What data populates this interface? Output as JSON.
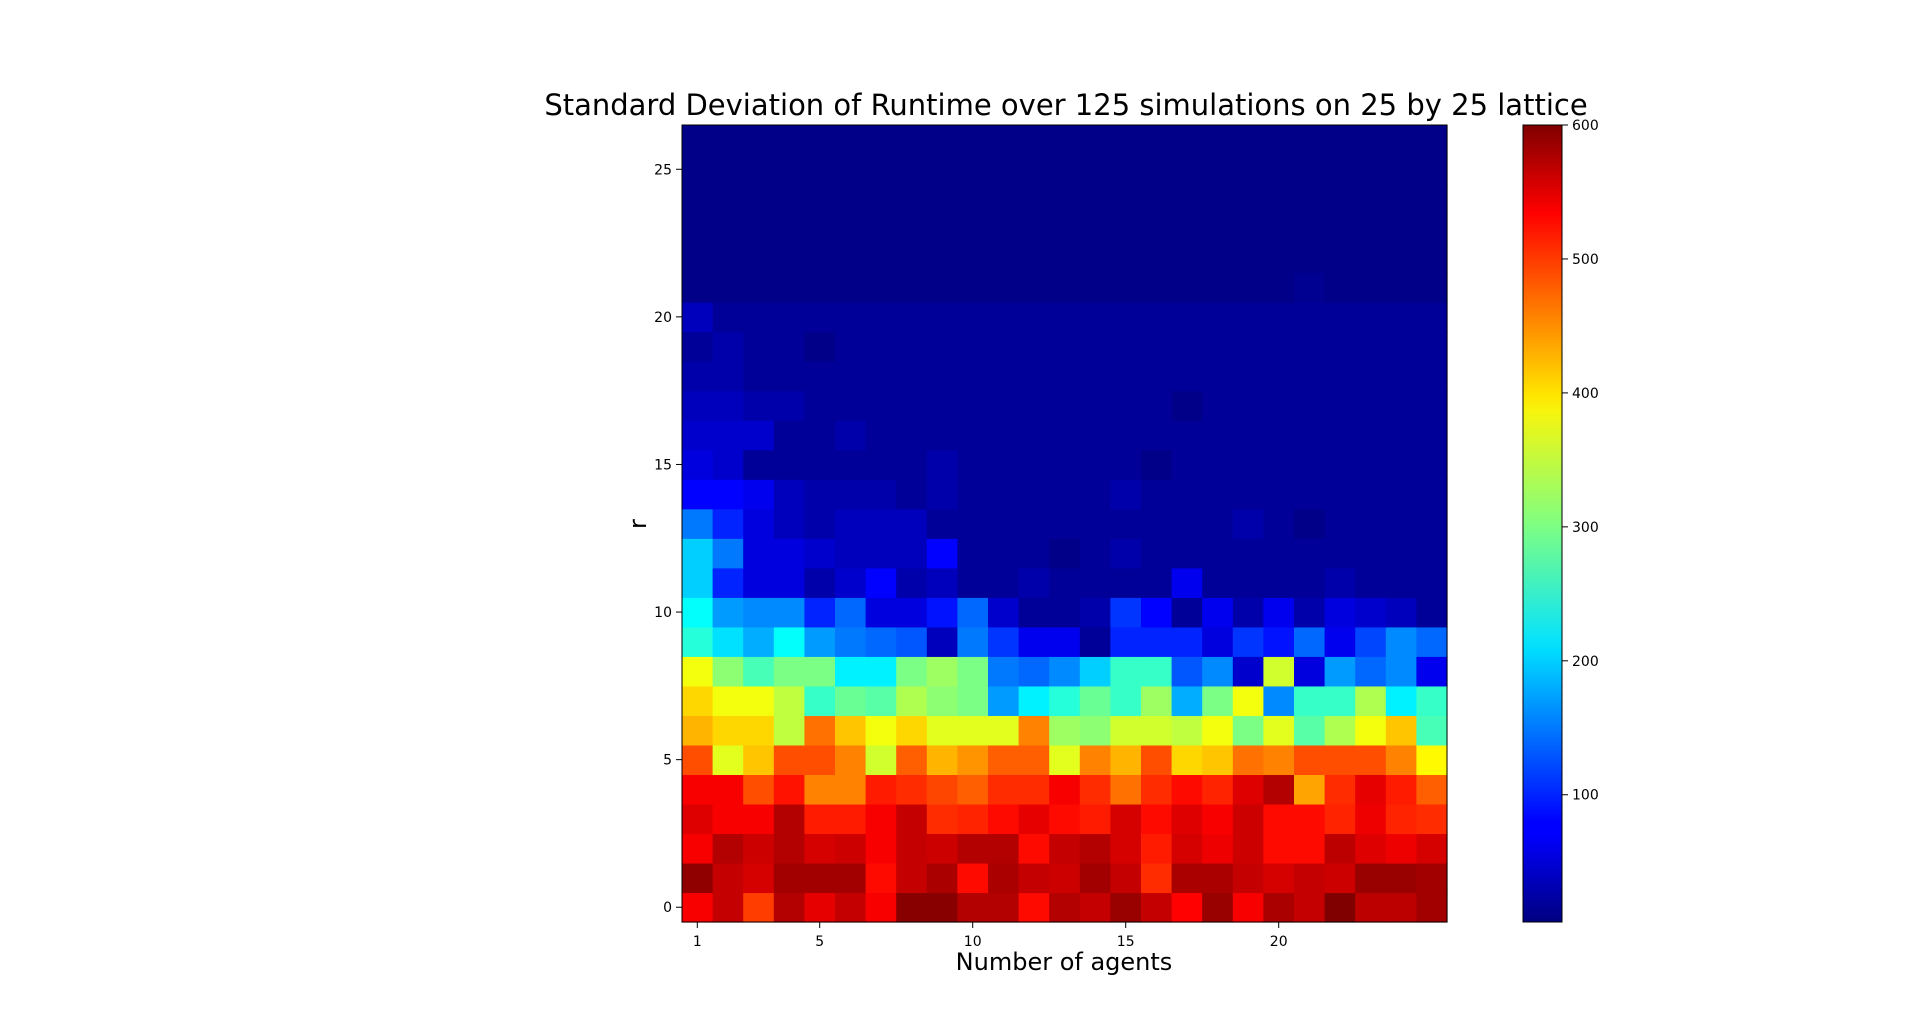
{
  "chart_data": {
    "type": "heatmap",
    "title": "Standard Deviation of Runtime over 125 simulations on 25 by 25 lattice",
    "xlabel": "Number of agents",
    "ylabel": "r",
    "x_ticks": [
      1,
      5,
      10,
      15,
      20
    ],
    "y_ticks": [
      0,
      5,
      10,
      15,
      20,
      25
    ],
    "colorbar_ticks": [
      100,
      200,
      300,
      400,
      500,
      600
    ],
    "colorbar_range": [
      5,
      600
    ],
    "colormap": "jet",
    "x_values": [
      1,
      2,
      3,
      4,
      5,
      6,
      7,
      8,
      9,
      10,
      11,
      12,
      13,
      14,
      15,
      16,
      17,
      18,
      19,
      20,
      21,
      22,
      23,
      24,
      25
    ],
    "y_values": [
      0,
      1,
      2,
      3,
      4,
      5,
      6,
      7,
      8,
      9,
      10,
      11,
      12,
      13,
      14,
      15,
      16,
      17,
      18,
      19,
      20,
      21,
      22,
      23,
      24,
      25,
      26
    ],
    "rows_from_r0": [
      [
        530,
        560,
        490,
        570,
        540,
        560,
        530,
        595,
        595,
        570,
        570,
        520,
        570,
        560,
        585,
        560,
        525,
        585,
        530,
        575,
        560,
        600,
        565,
        565,
        580
      ],
      [
        590,
        560,
        550,
        580,
        580,
        580,
        520,
        560,
        575,
        520,
        575,
        560,
        555,
        580,
        560,
        500,
        575,
        575,
        560,
        550,
        560,
        555,
        585,
        585,
        580
      ],
      [
        530,
        570,
        555,
        570,
        550,
        555,
        530,
        560,
        555,
        570,
        570,
        520,
        560,
        570,
        550,
        510,
        550,
        535,
        555,
        520,
        520,
        565,
        545,
        535,
        550
      ],
      [
        545,
        530,
        530,
        570,
        510,
        510,
        530,
        560,
        500,
        505,
        520,
        540,
        520,
        510,
        550,
        520,
        545,
        530,
        555,
        520,
        520,
        505,
        535,
        505,
        500
      ],
      [
        530,
        530,
        480,
        515,
        450,
        450,
        510,
        500,
        485,
        470,
        500,
        500,
        530,
        500,
        460,
        500,
        520,
        505,
        545,
        570,
        430,
        500,
        540,
        510,
        470
      ],
      [
        480,
        360,
        410,
        480,
        480,
        450,
        350,
        470,
        420,
        440,
        470,
        470,
        360,
        450,
        420,
        480,
        400,
        410,
        460,
        450,
        480,
        480,
        480,
        450,
        380
      ],
      [
        420,
        400,
        400,
        340,
        460,
        410,
        370,
        400,
        360,
        360,
        360,
        450,
        320,
        310,
        350,
        350,
        340,
        370,
        300,
        360,
        280,
        330,
        370,
        410,
        270
      ],
      [
        400,
        370,
        370,
        340,
        260,
        290,
        280,
        330,
        310,
        300,
        170,
        220,
        250,
        290,
        260,
        320,
        180,
        300,
        370,
        160,
        260,
        260,
        330,
        220,
        260
      ],
      [
        370,
        310,
        270,
        300,
        300,
        220,
        220,
        300,
        320,
        300,
        150,
        140,
        160,
        200,
        260,
        260,
        130,
        160,
        50,
        350,
        60,
        170,
        140,
        160,
        70
      ],
      [
        250,
        210,
        180,
        230,
        170,
        150,
        140,
        130,
        40,
        150,
        110,
        70,
        70,
        20,
        100,
        100,
        100,
        60,
        110,
        90,
        140,
        70,
        120,
        160,
        140
      ],
      [
        230,
        170,
        160,
        160,
        100,
        140,
        60,
        60,
        90,
        140,
        50,
        20,
        20,
        30,
        110,
        80,
        20,
        70,
        30,
        70,
        30,
        60,
        50,
        40,
        20
      ],
      [
        200,
        100,
        60,
        60,
        30,
        50,
        80,
        30,
        40,
        20,
        20,
        30,
        20,
        20,
        20,
        20,
        70,
        20,
        20,
        20,
        20,
        30,
        20,
        20,
        20
      ],
      [
        200,
        150,
        60,
        60,
        50,
        40,
        40,
        40,
        80,
        20,
        20,
        20,
        10,
        20,
        30,
        20,
        20,
        20,
        20,
        20,
        20,
        20,
        20,
        20,
        20
      ],
      [
        150,
        100,
        60,
        40,
        30,
        40,
        40,
        40,
        20,
        20,
        20,
        20,
        20,
        20,
        20,
        20,
        20,
        20,
        30,
        20,
        10,
        20,
        20,
        20,
        20
      ],
      [
        80,
        80,
        70,
        40,
        30,
        30,
        30,
        20,
        30,
        20,
        20,
        20,
        20,
        20,
        30,
        20,
        20,
        20,
        20,
        20,
        20,
        20,
        20,
        20,
        20
      ],
      [
        60,
        50,
        20,
        20,
        20,
        20,
        20,
        20,
        30,
        20,
        20,
        20,
        20,
        20,
        20,
        10,
        20,
        20,
        20,
        20,
        20,
        20,
        20,
        20,
        20
      ],
      [
        50,
        50,
        50,
        20,
        20,
        30,
        20,
        20,
        20,
        20,
        20,
        20,
        20,
        20,
        20,
        20,
        20,
        20,
        20,
        20,
        20,
        20,
        20,
        20,
        20
      ],
      [
        40,
        40,
        30,
        30,
        20,
        20,
        20,
        20,
        20,
        20,
        20,
        20,
        20,
        20,
        20,
        20,
        10,
        20,
        20,
        20,
        20,
        20,
        20,
        20,
        20
      ],
      [
        30,
        30,
        20,
        20,
        20,
        20,
        20,
        20,
        20,
        20,
        20,
        20,
        20,
        20,
        20,
        20,
        20,
        20,
        20,
        20,
        20,
        20,
        20,
        20,
        20
      ],
      [
        20,
        30,
        20,
        20,
        10,
        20,
        20,
        20,
        20,
        20,
        20,
        20,
        20,
        20,
        20,
        20,
        20,
        20,
        20,
        20,
        20,
        20,
        20,
        20,
        20
      ],
      [
        40,
        20,
        20,
        20,
        20,
        20,
        20,
        20,
        20,
        20,
        20,
        20,
        20,
        20,
        20,
        20,
        20,
        20,
        20,
        20,
        20,
        20,
        20,
        20,
        20
      ],
      [
        10,
        10,
        10,
        10,
        10,
        10,
        10,
        10,
        10,
        10,
        10,
        10,
        10,
        10,
        10,
        10,
        10,
        10,
        10,
        10,
        15,
        10,
        10,
        10,
        10
      ],
      [
        10,
        10,
        10,
        10,
        10,
        10,
        10,
        10,
        10,
        10,
        10,
        10,
        10,
        10,
        10,
        10,
        10,
        10,
        10,
        10,
        10,
        10,
        10,
        10,
        10
      ],
      [
        10,
        10,
        10,
        10,
        10,
        10,
        10,
        10,
        10,
        10,
        10,
        10,
        10,
        10,
        10,
        10,
        10,
        10,
        10,
        10,
        10,
        10,
        10,
        10,
        10
      ],
      [
        10,
        10,
        10,
        10,
        10,
        10,
        10,
        10,
        10,
        10,
        10,
        10,
        10,
        10,
        10,
        10,
        10,
        10,
        10,
        10,
        10,
        10,
        10,
        10,
        10
      ],
      [
        10,
        10,
        10,
        10,
        10,
        10,
        10,
        10,
        10,
        10,
        10,
        10,
        10,
        10,
        10,
        10,
        10,
        10,
        10,
        10,
        10,
        10,
        10,
        10,
        10
      ],
      [
        10,
        10,
        10,
        10,
        10,
        10,
        10,
        10,
        10,
        10,
        10,
        10,
        10,
        10,
        10,
        10,
        10,
        10,
        10,
        10,
        10,
        10,
        10,
        10,
        10
      ]
    ]
  }
}
